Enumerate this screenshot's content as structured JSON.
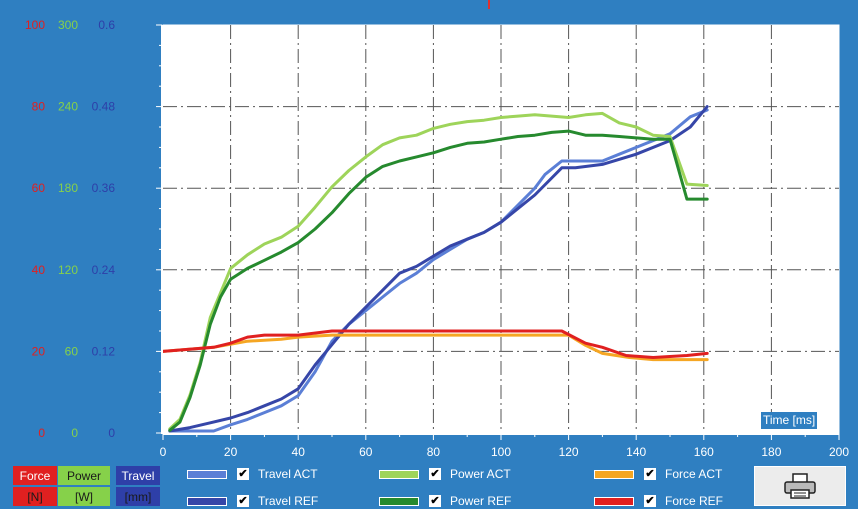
{
  "chart_data": {
    "type": "line",
    "x_axis": {
      "label": "Time [ms]",
      "range": [
        0,
        200
      ],
      "ticks": [
        "0",
        "20",
        "40",
        "60",
        "80",
        "100",
        "120",
        "140",
        "160",
        "180",
        "200"
      ]
    },
    "y_axes": [
      {
        "name": "Force",
        "unit": "[N]",
        "color": "#e02020",
        "range": [
          0,
          100
        ],
        "ticks": [
          "0",
          "20",
          "40",
          "60",
          "80",
          "100"
        ]
      },
      {
        "name": "Power",
        "unit": "[W]",
        "color": "#86d14a",
        "range": [
          0,
          300
        ],
        "ticks": [
          "0",
          "60",
          "120",
          "180",
          "240",
          "300"
        ]
      },
      {
        "name": "Travel",
        "unit": "[mm]",
        "color": "#2e3fa8",
        "range": [
          0,
          0.6
        ],
        "ticks": [
          "0",
          "0.12",
          "0.24",
          "0.36",
          "0.48",
          "0.6"
        ]
      }
    ],
    "grid": true,
    "series": [
      {
        "name": "Travel ACT",
        "axis": 2,
        "color": "#5b7fd6",
        "checked": true,
        "points": [
          [
            2,
            0.003
          ],
          [
            8,
            0.003
          ],
          [
            15,
            0.003
          ],
          [
            20,
            0.012
          ],
          [
            25,
            0.02
          ],
          [
            30,
            0.03
          ],
          [
            35,
            0.04
          ],
          [
            40,
            0.055
          ],
          [
            45,
            0.09
          ],
          [
            50,
            0.135
          ],
          [
            55,
            0.16
          ],
          [
            60,
            0.18
          ],
          [
            65,
            0.2
          ],
          [
            70,
            0.22
          ],
          [
            75,
            0.235
          ],
          [
            80,
            0.255
          ],
          [
            85,
            0.27
          ],
          [
            90,
            0.285
          ],
          [
            95,
            0.295
          ],
          [
            100,
            0.31
          ],
          [
            105,
            0.335
          ],
          [
            110,
            0.36
          ],
          [
            113,
            0.38
          ],
          [
            118,
            0.4
          ],
          [
            122,
            0.4
          ],
          [
            130,
            0.4
          ],
          [
            135,
            0.41
          ],
          [
            140,
            0.42
          ],
          [
            150,
            0.44
          ],
          [
            156,
            0.465
          ],
          [
            161,
            0.475
          ]
        ]
      },
      {
        "name": "Travel REF",
        "axis": 2,
        "color": "#3646a8",
        "checked": true,
        "points": [
          [
            2,
            0.003
          ],
          [
            8,
            0.008
          ],
          [
            14,
            0.015
          ],
          [
            20,
            0.022
          ],
          [
            25,
            0.03
          ],
          [
            30,
            0.04
          ],
          [
            35,
            0.05
          ],
          [
            40,
            0.065
          ],
          [
            45,
            0.1
          ],
          [
            50,
            0.13
          ],
          [
            55,
            0.16
          ],
          [
            60,
            0.185
          ],
          [
            65,
            0.21
          ],
          [
            70,
            0.235
          ],
          [
            75,
            0.245
          ],
          [
            80,
            0.26
          ],
          [
            85,
            0.275
          ],
          [
            90,
            0.285
          ],
          [
            95,
            0.295
          ],
          [
            100,
            0.31
          ],
          [
            105,
            0.33
          ],
          [
            110,
            0.35
          ],
          [
            115,
            0.375
          ],
          [
            118,
            0.39
          ],
          [
            122,
            0.39
          ],
          [
            130,
            0.395
          ],
          [
            140,
            0.41
          ],
          [
            150,
            0.43
          ],
          [
            156,
            0.45
          ],
          [
            161,
            0.48
          ]
        ]
      },
      {
        "name": "Power ACT",
        "axis": 1,
        "color": "#9ed45a",
        "checked": true,
        "points": [
          [
            2,
            3
          ],
          [
            5,
            10
          ],
          [
            8,
            28
          ],
          [
            11,
            52
          ],
          [
            14,
            85
          ],
          [
            17,
            103
          ],
          [
            20,
            121
          ],
          [
            25,
            131
          ],
          [
            30,
            139
          ],
          [
            35,
            144
          ],
          [
            40,
            152
          ],
          [
            45,
            166
          ],
          [
            50,
            181
          ],
          [
            55,
            193
          ],
          [
            60,
            203
          ],
          [
            65,
            212
          ],
          [
            70,
            217
          ],
          [
            75,
            219
          ],
          [
            80,
            224
          ],
          [
            85,
            227
          ],
          [
            90,
            229
          ],
          [
            95,
            230
          ],
          [
            100,
            232
          ],
          [
            105,
            233
          ],
          [
            110,
            234
          ],
          [
            115,
            233
          ],
          [
            120,
            232
          ],
          [
            125,
            234
          ],
          [
            130,
            235
          ],
          [
            135,
            228
          ],
          [
            140,
            225
          ],
          [
            145,
            219
          ],
          [
            150,
            218
          ],
          [
            155,
            183
          ],
          [
            161,
            182
          ]
        ]
      },
      {
        "name": "Power REF",
        "axis": 1,
        "color": "#268a2e",
        "checked": true,
        "points": [
          [
            2,
            2
          ],
          [
            5,
            8
          ],
          [
            8,
            26
          ],
          [
            11,
            50
          ],
          [
            14,
            80
          ],
          [
            17,
            100
          ],
          [
            20,
            113
          ],
          [
            25,
            121
          ],
          [
            30,
            127
          ],
          [
            35,
            133
          ],
          [
            40,
            140
          ],
          [
            45,
            150
          ],
          [
            50,
            162
          ],
          [
            55,
            176
          ],
          [
            60,
            188
          ],
          [
            65,
            196
          ],
          [
            70,
            200
          ],
          [
            75,
            203
          ],
          [
            80,
            206
          ],
          [
            85,
            210
          ],
          [
            90,
            213
          ],
          [
            95,
            214
          ],
          [
            100,
            216
          ],
          [
            105,
            218
          ],
          [
            110,
            219
          ],
          [
            115,
            221
          ],
          [
            120,
            222
          ],
          [
            125,
            219
          ],
          [
            130,
            219
          ],
          [
            135,
            218
          ],
          [
            140,
            217
          ],
          [
            145,
            216
          ],
          [
            150,
            216
          ],
          [
            155,
            172
          ],
          [
            161,
            172
          ]
        ]
      },
      {
        "name": "Force ACT",
        "axis": 0,
        "color": "#f5a623",
        "checked": true,
        "points": [
          [
            0,
            20
          ],
          [
            15,
            21
          ],
          [
            25,
            22.5
          ],
          [
            35,
            23
          ],
          [
            40,
            23.5
          ],
          [
            50,
            24
          ],
          [
            60,
            24
          ],
          [
            70,
            24
          ],
          [
            80,
            24
          ],
          [
            90,
            24
          ],
          [
            100,
            24
          ],
          [
            110,
            24
          ],
          [
            120,
            24
          ],
          [
            125,
            21.5
          ],
          [
            130,
            19.5
          ],
          [
            138,
            18.5
          ],
          [
            145,
            18
          ],
          [
            155,
            18
          ],
          [
            161,
            18
          ]
        ]
      },
      {
        "name": "Force REF",
        "axis": 0,
        "color": "#e02020",
        "checked": true,
        "points": [
          [
            0,
            20
          ],
          [
            15,
            21
          ],
          [
            20,
            22
          ],
          [
            25,
            23.5
          ],
          [
            30,
            24
          ],
          [
            40,
            24
          ],
          [
            50,
            25
          ],
          [
            60,
            25
          ],
          [
            70,
            25
          ],
          [
            80,
            25
          ],
          [
            90,
            25
          ],
          [
            100,
            25
          ],
          [
            110,
            25
          ],
          [
            118,
            25
          ],
          [
            125,
            22
          ],
          [
            130,
            21
          ],
          [
            137,
            19
          ],
          [
            145,
            18.5
          ],
          [
            155,
            19
          ],
          [
            161,
            19.5
          ]
        ]
      }
    ]
  },
  "legend": {
    "axis_boxes": [
      {
        "text": "Force",
        "color": "#e02020"
      },
      {
        "text": "Power",
        "color": "#86d14a"
      },
      {
        "text": "Travel",
        "color": "#2e3fa8"
      },
      {
        "text": "[N]",
        "color": "#e02020"
      },
      {
        "text": "[W]",
        "color": "#86d14a"
      },
      {
        "text": "[mm]",
        "color": "#2e3fa8"
      }
    ],
    "checkmark": "✔"
  },
  "toolbar": {
    "print_icon": "printer-icon"
  }
}
